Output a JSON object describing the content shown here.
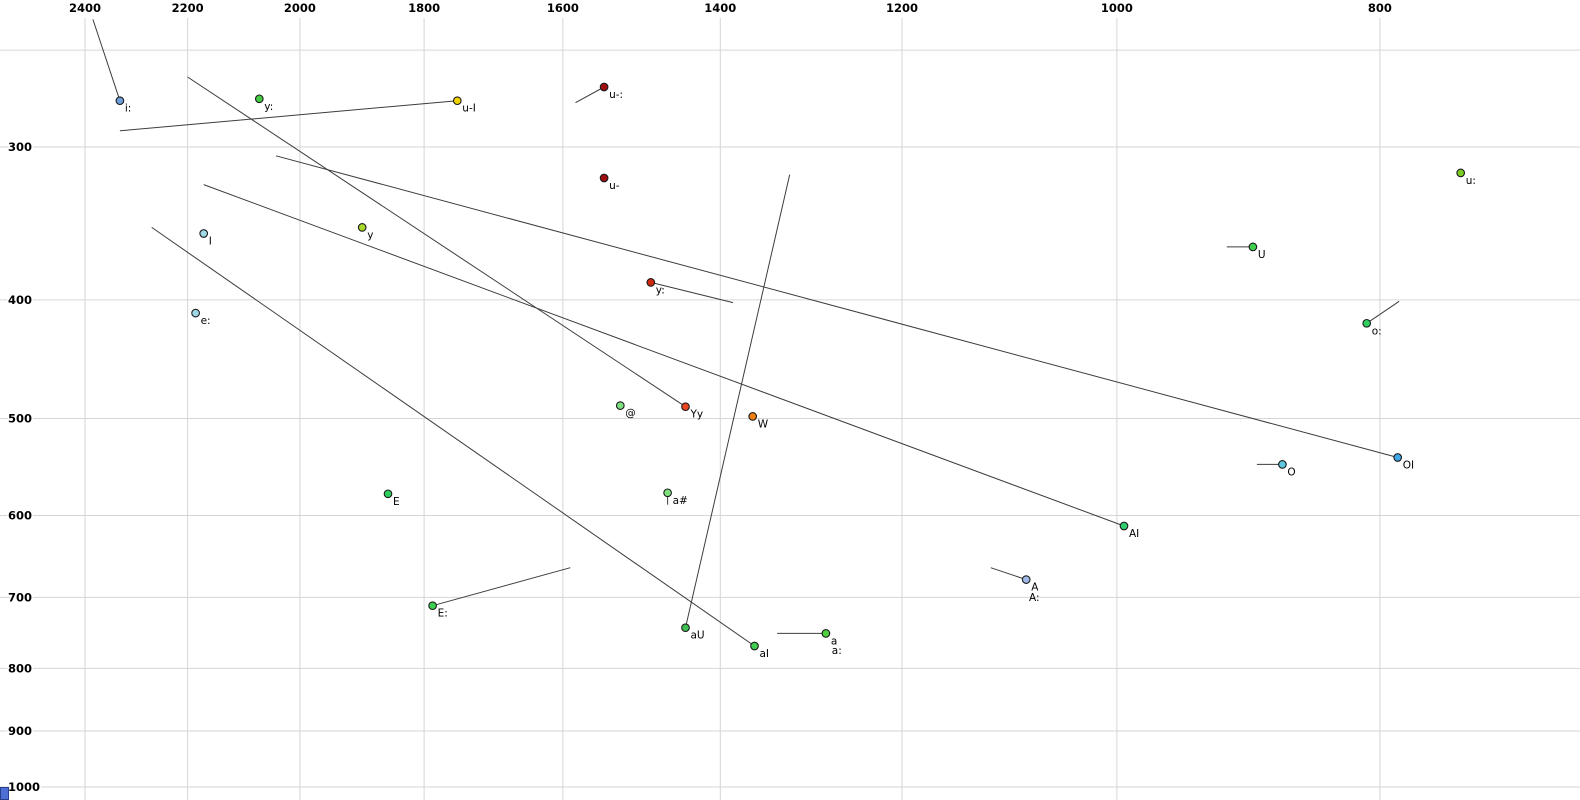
{
  "chart_data": {
    "type": "scatter",
    "title": "",
    "background": "#ffffff",
    "grid_color": "#d6d6d6",
    "line_color": "#3c3c3c",
    "marker_outline": "#1a1a1a",
    "x_axis": {
      "position": "top",
      "scale": "log",
      "direction": "reversed",
      "ticks": [
        2400,
        2200,
        2000,
        1800,
        1600,
        1400,
        1200,
        1000,
        800
      ]
    },
    "y_axis": {
      "position": "left",
      "scale": "log",
      "direction": "down",
      "ticks": [
        300,
        400,
        500,
        600,
        700,
        800,
        900,
        1000
      ],
      "extra_gridlines": [
        250
      ]
    },
    "points": [
      {
        "label": "i:",
        "f2": 2330,
        "f1": 275,
        "color": "#6f9fd8",
        "dot": true
      },
      {
        "label": "y:",
        "f2": 2070,
        "f1": 274,
        "color": "#44cc44",
        "dot": true
      },
      {
        "label": "u-I",
        "f2": 1750,
        "f1": 275,
        "color": "#f0d400",
        "dot": true
      },
      {
        "label": "u-:",
        "f2": 1545,
        "f1": 268,
        "color": "#a01010",
        "dot": true
      },
      {
        "label": "u-",
        "f2": 1545,
        "f1": 318,
        "color": "#a01010",
        "dot": true
      },
      {
        "label": "u:",
        "f2": 747,
        "f1": 315,
        "color": "#7acc22",
        "dot": true
      },
      {
        "label": "y",
        "f2": 1897,
        "f1": 349,
        "color": "#a8d82a",
        "dot": true
      },
      {
        "label": "I",
        "f2": 2170,
        "f1": 353,
        "color": "#9fd8e8",
        "dot": true
      },
      {
        "label": "U",
        "f2": 891,
        "f1": 362,
        "color": "#3fcf4f",
        "dot": true
      },
      {
        "label": "y:",
        "f2": 1485,
        "f1": 387,
        "color": "#cf2a10",
        "dot": true
      },
      {
        "label": "e:",
        "f2": 2185,
        "f1": 410,
        "color": "#9fd8e8",
        "dot": true
      },
      {
        "label": "o:",
        "f2": 809,
        "f1": 418,
        "color": "#2fcf5f",
        "dot": true
      },
      {
        "label": "@",
        "f2": 1524,
        "f1": 488,
        "color": "#7fe07f",
        "dot": true
      },
      {
        "label": "Yy",
        "f2": 1442,
        "f1": 489,
        "color": "#e8441f",
        "dot": true
      },
      {
        "label": "W",
        "f2": 1362,
        "f1": 498,
        "color": "#f08010",
        "dot": true
      },
      {
        "label": "O",
        "f2": 869,
        "f1": 545,
        "color": "#5fc8e0",
        "dot": true
      },
      {
        "label": "OI",
        "f2": 788,
        "f1": 538,
        "color": "#3fa8e8",
        "dot": true
      },
      {
        "label": "E",
        "f2": 1856,
        "f1": 576,
        "color": "#2fcf5f",
        "dot": true
      },
      {
        "label": "a#",
        "f2": 1464,
        "f1": 575,
        "color": "#7fe07f",
        "dot": true
      },
      {
        "label": "AI",
        "f2": 994,
        "f1": 612,
        "color": "#2fcf6f",
        "dot": true
      },
      {
        "label": "A",
        "f2": 1080,
        "f1": 677,
        "color": "#9fb8e8",
        "dot": true
      },
      {
        "label": "A:",
        "f2": 1082,
        "f1": 690,
        "color": "#9fb8e8",
        "dot": false
      },
      {
        "label": "E:",
        "f2": 1787,
        "f1": 711,
        "color": "#3fcf4f",
        "dot": true
      },
      {
        "label": "aU",
        "f2": 1442,
        "f1": 741,
        "color": "#3fbf4f",
        "dot": true
      },
      {
        "label": "aI",
        "f2": 1360,
        "f1": 767,
        "color": "#3fcf4f",
        "dot": true
      },
      {
        "label": "a",
        "f2": 1280,
        "f1": 749,
        "color": "#4fcf3f",
        "dot": true
      },
      {
        "label": "a:",
        "f2": 1279,
        "f1": 763,
        "color": "#4fcf3f",
        "dot": false
      }
    ],
    "segments": [
      {
        "from": [
          2384,
          236
        ],
        "to": [
          2330,
          275
        ]
      },
      {
        "from": [
          2330,
          291
        ],
        "to": [
          1750,
          275
        ]
      },
      {
        "from": [
          2200,
          263
        ],
        "to": [
          1442,
          489
        ]
      },
      {
        "from": [
          2041,
          305
        ],
        "to": [
          788,
          538
        ]
      },
      {
        "from": [
          2170,
          322
        ],
        "to": [
          994,
          612
        ]
      },
      {
        "from": [
          2268,
          349
        ],
        "to": [
          1360,
          767
        ]
      },
      {
        "from": [
          1320,
          316
        ],
        "to": [
          1442,
          741
        ]
      },
      {
        "from": [
          1583,
          276
        ],
        "to": [
          1545,
          268
        ]
      },
      {
        "from": [
          1485,
          387
        ],
        "to": [
          1385,
          402
        ]
      },
      {
        "from": [
          911,
          362
        ],
        "to": [
          891,
          362
        ]
      },
      {
        "from": [
          787,
          401
        ],
        "to": [
          809,
          418
        ]
      },
      {
        "from": [
          888,
          545
        ],
        "to": [
          869,
          545
        ]
      },
      {
        "from": [
          1113,
          662
        ],
        "to": [
          1080,
          677
        ]
      },
      {
        "from": [
          1590,
          662
        ],
        "to": [
          1787,
          711
        ]
      },
      {
        "from": [
          1334,
          749
        ],
        "to": [
          1280,
          749
        ]
      },
      {
        "from": [
          1464,
          576
        ],
        "to": [
          1464,
          588
        ]
      }
    ]
  }
}
